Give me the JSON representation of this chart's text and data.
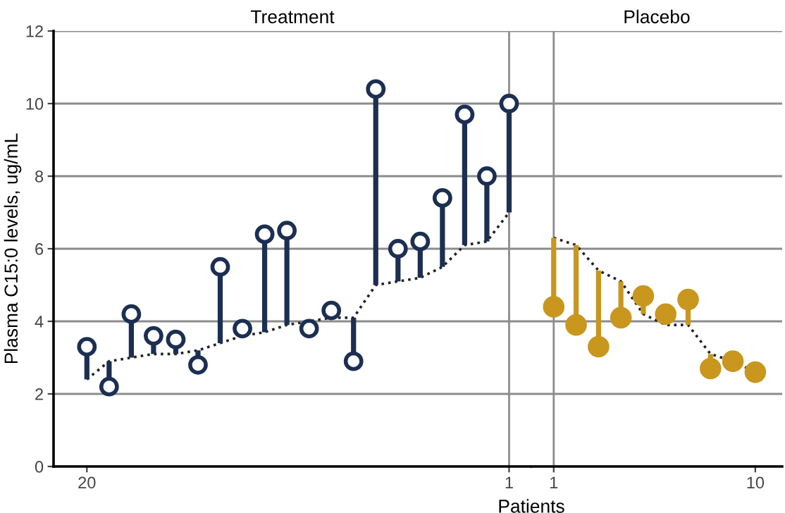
{
  "chart_data": [
    {
      "type": "scatter",
      "title": "Treatment",
      "ylabel": "Plasma C15:0 levels, ug/mL",
      "xlabel": "Patients",
      "xlim": [
        21.5,
        0
      ],
      "xticks": [
        20,
        1
      ],
      "ylim": [
        0,
        12
      ],
      "yticks": [
        0,
        2,
        4,
        6,
        8,
        10,
        12
      ],
      "grid": "y",
      "ref_lines": [
        {
          "axis": "x",
          "value": 1,
          "color": "#8c8c8c"
        }
      ],
      "series": [
        {
          "type": "line",
          "line_style": "dotted",
          "color": "#222222",
          "x": [
            20,
            19,
            18,
            17,
            16,
            15,
            14,
            13,
            12,
            11,
            10,
            9,
            8,
            7,
            6,
            5,
            4,
            3,
            2,
            1
          ],
          "values": [
            2.4,
            2.9,
            3.0,
            3.1,
            3.1,
            3.2,
            3.4,
            3.6,
            3.7,
            3.9,
            4.0,
            4.1,
            4.1,
            5.0,
            5.1,
            5.2,
            5.5,
            6.1,
            6.2,
            7.0
          ]
        },
        {
          "marker": "circle",
          "color": "#1c2f52",
          "x": [
            20,
            19,
            18,
            17,
            16,
            15,
            14,
            13,
            12,
            11,
            10,
            9,
            8,
            7,
            6,
            5,
            4,
            3,
            2,
            1
          ],
          "values": [
            3.3,
            2.2,
            4.2,
            3.6,
            3.5,
            2.8,
            5.5,
            3.8,
            6.4,
            6.5,
            3.8,
            4.3,
            2.9,
            10.4,
            6.0,
            6.2,
            7.4,
            9.7,
            8.0,
            10.0
          ],
          "errors": [
            [
              2.4,
              3.3
            ],
            [
              2.2,
              2.9
            ],
            [
              3.0,
              4.2
            ],
            [
              3.1,
              3.6
            ],
            [
              3.1,
              3.5
            ],
            [
              2.8,
              3.2
            ],
            [
              3.4,
              5.5
            ],
            [
              3.6,
              3.8
            ],
            [
              3.7,
              6.4
            ],
            [
              3.9,
              6.5
            ],
            [
              3.8,
              4.0
            ],
            [
              4.1,
              4.3
            ],
            [
              2.9,
              4.1
            ],
            [
              5.0,
              10.4
            ],
            [
              5.1,
              6.0
            ],
            [
              5.2,
              6.2
            ],
            [
              5.5,
              7.4
            ],
            [
              6.1,
              9.7
            ],
            [
              6.2,
              8.0
            ],
            [
              7.0,
              10.0
            ]
          ]
        }
      ]
    },
    {
      "type": "scatter",
      "title": "Placebo",
      "xlim": [
        0,
        11.2
      ],
      "xticks": [
        1,
        10
      ],
      "ylim": [
        0,
        12
      ],
      "yticks": [
        0,
        2,
        4,
        6,
        8,
        10,
        12
      ],
      "grid": "y",
      "tick_labels": "x",
      "ref_lines": [
        {
          "axis": "x",
          "value": 1,
          "color": "#8c8c8c"
        }
      ],
      "series": [
        {
          "type": "line",
          "line_style": "dotted",
          "color": "#222222",
          "x": [
            1,
            2,
            3,
            4,
            5,
            6,
            7,
            8,
            9,
            10
          ],
          "values": [
            6.3,
            6.1,
            5.4,
            5.1,
            4.2,
            3.9,
            3.9,
            3.1,
            2.9,
            2.6
          ]
        },
        {
          "marker": "circle",
          "color": "#c9961e",
          "x": [
            1,
            2,
            3,
            4,
            5,
            6,
            7,
            8,
            9,
            10
          ],
          "values": [
            4.4,
            3.9,
            3.3,
            4.1,
            4.7,
            4.2,
            4.6,
            2.7,
            2.9,
            2.6
          ],
          "errors": [
            [
              4.4,
              6.3
            ],
            [
              3.9,
              6.1
            ],
            [
              3.3,
              5.4
            ],
            [
              4.1,
              5.1
            ],
            [
              4.2,
              4.7
            ],
            [
              3.9,
              4.2
            ],
            [
              3.9,
              4.6
            ],
            [
              2.7,
              3.1
            ],
            null,
            null
          ]
        }
      ]
    }
  ]
}
